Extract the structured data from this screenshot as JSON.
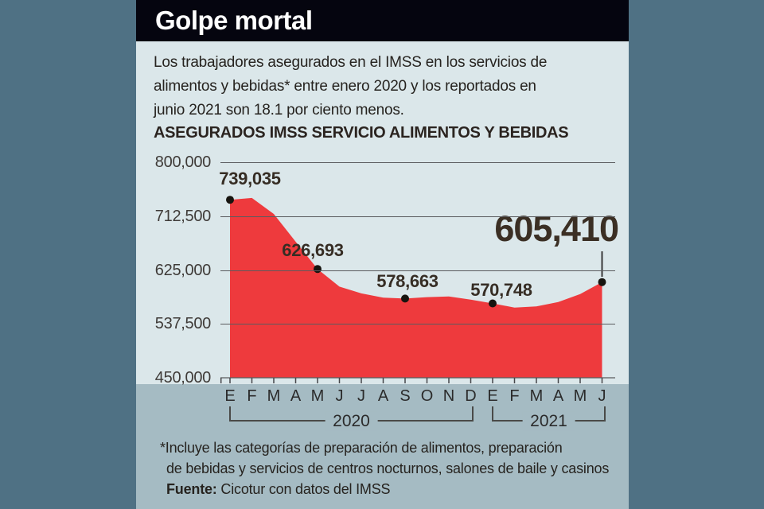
{
  "header": {
    "title": "Golpe mortal"
  },
  "intro": {
    "lines": [
      "Los trabajadores asegurados en el IMSS en los servicios de",
      "alimentos y bebidas* entre enero 2020 y los reportados en",
      "junio 2021 son 18.1 por ciento menos."
    ]
  },
  "chart_data": {
    "type": "area",
    "title": "ASEGURADOS IMSS SERVICIO ALIMENTOS Y BEBIDAS",
    "categories": [
      "E",
      "F",
      "M",
      "A",
      "M",
      "J",
      "J",
      "A",
      "S",
      "O",
      "N",
      "D",
      "E",
      "F",
      "M",
      "A",
      "M",
      "J"
    ],
    "values": [
      739035,
      742000,
      716000,
      671000,
      626693,
      598000,
      587000,
      580000,
      578663,
      581000,
      582000,
      577000,
      570748,
      564000,
      566000,
      573000,
      586000,
      605410
    ],
    "labeled_points": [
      {
        "index": 0,
        "text": "739,035"
      },
      {
        "index": 4,
        "text": "626,693"
      },
      {
        "index": 8,
        "text": "578,663"
      },
      {
        "index": 12,
        "text": "570,748"
      },
      {
        "index": 17,
        "text": "605,410",
        "emphasis": true
      }
    ],
    "y_ticks": [
      "800,000",
      "712,500",
      "625,000",
      "537,500",
      "450,000"
    ],
    "y_tick_values": [
      800000,
      712500,
      625000,
      537500,
      450000
    ],
    "ylim": [
      450000,
      800000
    ],
    "year_groups": [
      {
        "label": "2020",
        "from": 0,
        "to": 11
      },
      {
        "label": "2021",
        "from": 12,
        "to": 17
      }
    ],
    "xlabel": "",
    "ylabel": "",
    "grid": true,
    "legend": "none"
  },
  "footnote": {
    "line1": "*Incluye las categorías de preparación de alimentos, preparación",
    "line2": "de bebidas y servicios de centros nocturnos, salones de baile y casinos",
    "source_label": "Fuente:",
    "source_text": "Cicotur con datos del IMSS"
  },
  "colors": {
    "background": "#4f7184",
    "panel": "#dbe7ea",
    "band": "#a5bbc3",
    "banner": "#05050f",
    "area": "#ee3a3d",
    "dot": "#17140f",
    "gridline": "#5a5b5e",
    "text_dark": "#26231f",
    "label_dark": "#362d24"
  }
}
